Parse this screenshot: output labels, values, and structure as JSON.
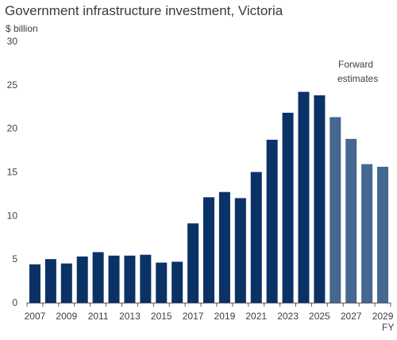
{
  "chart_data": {
    "type": "bar",
    "title": "Government infrastructure investment, Victoria",
    "ylabel": "$ billion",
    "xlabel": "FY",
    "ylim": [
      0,
      30
    ],
    "yticks": [
      0,
      5,
      10,
      15,
      20,
      25,
      30
    ],
    "grid": false,
    "categories": [
      "2007",
      "2008",
      "2009",
      "2010",
      "2011",
      "2012",
      "2013",
      "2014",
      "2015",
      "2016",
      "2017",
      "2018",
      "2019",
      "2020",
      "2021",
      "2022",
      "2023",
      "2024",
      "2025",
      "2026",
      "2027",
      "2028",
      "2029"
    ],
    "xtick_labels": [
      "2007",
      "2009",
      "2011",
      "2013",
      "2015",
      "2017",
      "2019",
      "2021",
      "2023",
      "2025",
      "2027",
      "2029"
    ],
    "values": [
      4.4,
      5.0,
      4.5,
      5.3,
      5.8,
      5.4,
      5.4,
      5.5,
      4.6,
      4.7,
      9.1,
      12.1,
      12.7,
      12.0,
      15.0,
      18.7,
      21.8,
      24.2,
      23.8,
      21.3,
      18.8,
      15.9,
      15.6
    ],
    "forecast_start": "2026",
    "annotation": [
      "Forward",
      "estimates"
    ],
    "colors": {
      "actual": "#0b3266",
      "forecast": "#44688f",
      "axis": "#595959"
    }
  }
}
